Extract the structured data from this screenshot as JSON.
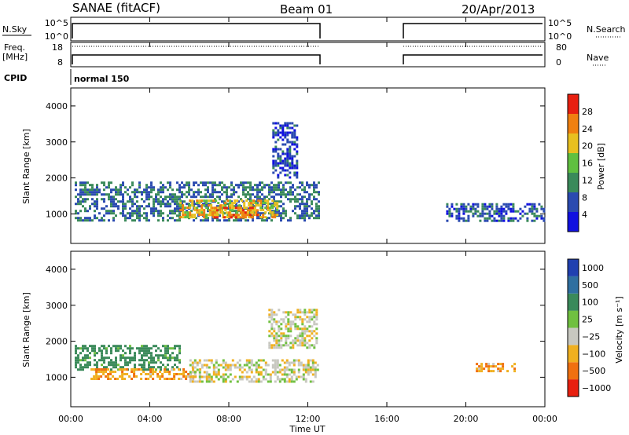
{
  "header": {
    "station": "SANAE (fitACF)",
    "beam": "Beam 01",
    "date": "20/Apr/2013"
  },
  "aux_panels": {
    "nsky_label": "N.Sky",
    "nsearch_label": "N.Search",
    "noise_ticks": [
      "10^5",
      "10^0"
    ],
    "freq_label_1": "Freq.",
    "freq_label_2": "[MHz]",
    "freq_ticks": [
      "18",
      "8"
    ],
    "nave_ticks": [
      "80",
      "0"
    ],
    "nave_label": "Nave",
    "cpid_label": "CPID",
    "cpid_value": "normal 150"
  },
  "x_axis": {
    "label": "Time UT",
    "ticks": [
      "00:00",
      "04:00",
      "08:00",
      "12:00",
      "16:00",
      "20:00",
      "00:00"
    ]
  },
  "power_panel": {
    "y_label": "Slant Range [km]",
    "y_ticks": [
      "1000",
      "2000",
      "3000",
      "4000"
    ],
    "colorbar_label": "Power [dB]",
    "colorbar_ticks": [
      "4",
      "8",
      "12",
      "16",
      "20",
      "24",
      "28"
    ],
    "colors": [
      "#1010e0",
      "#2a4ab0",
      "#3a8a5a",
      "#60c040",
      "#e8c020",
      "#f08010",
      "#e82010"
    ]
  },
  "velocity_panel": {
    "y_label": "Slant Range [km]",
    "y_ticks": [
      "1000",
      "2000",
      "3000",
      "4000"
    ],
    "colorbar_label": "Velocity [m s⁻¹]",
    "colorbar_ticks": [
      "1000",
      "500",
      "100",
      "25",
      "−25",
      "−100",
      "−500",
      "−1000"
    ],
    "colors": [
      "#2040b0",
      "#2f6fa0",
      "#3a8a5a",
      "#70c040",
      "#c8c8c0",
      "#f0b020",
      "#f07010",
      "#e82010",
      "#e00000"
    ]
  },
  "chart_data": {
    "type": "heatmap",
    "x_unit": "hours UT",
    "xlim": [
      0,
      24
    ],
    "ylim_km": [
      180,
      4500
    ],
    "data_gap_hours": [
      12.6,
      16.8
    ],
    "power_echo_regions": [
      {
        "t_start": 0.2,
        "t_end": 12.5,
        "range_km": [
          850,
          1900
        ],
        "power_db": 8
      },
      {
        "t_start": 5.5,
        "t_end": 10.5,
        "range_km": [
          900,
          1400
        ],
        "power_db": 18
      },
      {
        "t_start": 7.0,
        "t_end": 9.5,
        "range_km": [
          900,
          1200
        ],
        "power_db": 22
      },
      {
        "t_start": 10.2,
        "t_end": 11.5,
        "range_km": [
          2000,
          3550
        ],
        "power_db": 5
      },
      {
        "t_start": 19.0,
        "t_end": 24.0,
        "range_km": [
          800,
          1300
        ],
        "power_db": 6
      }
    ],
    "velocity_echo_regions": [
      {
        "t_start": 0.2,
        "t_end": 5.5,
        "range_km": [
          1200,
          1900
        ],
        "velocity_ms": 150
      },
      {
        "t_start": 1.0,
        "t_end": 6.5,
        "range_km": [
          950,
          1250
        ],
        "velocity_ms": -80
      },
      {
        "t_start": 6.0,
        "t_end": 12.5,
        "range_km": [
          850,
          1500
        ],
        "velocity_ms": 0
      },
      {
        "t_start": 10.0,
        "t_end": 12.5,
        "range_km": [
          1800,
          2900
        ],
        "velocity_ms": 0
      },
      {
        "t_start": 20.5,
        "t_end": 22.5,
        "range_km": [
          1200,
          1400
        ],
        "velocity_ms": -80
      }
    ]
  }
}
